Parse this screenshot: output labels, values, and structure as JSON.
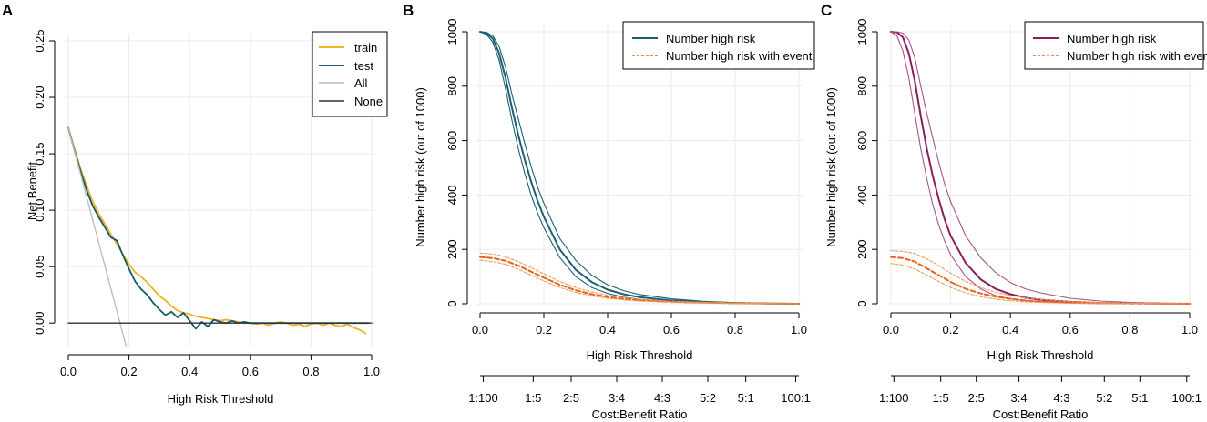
{
  "colors": {
    "train": "#f0b323",
    "test": "#145a6e",
    "all": "#bdbdbd",
    "none": "#333333",
    "teal": "#1d5f72",
    "teal_light": "#3a7f92",
    "purple": "#8c1d5e",
    "purple_light": "#a4558a",
    "orange_event": "#e8631a",
    "orange_light": "#f19a5b",
    "grid": "#ebebeb"
  },
  "chart_data": [
    {
      "id": "A",
      "panel_label": "A",
      "type": "line",
      "title": "",
      "xlabel": "High Risk Threshold",
      "ylabel": "Net Benefit",
      "xlim": [
        0,
        1
      ],
      "ylim": [
        -0.02,
        0.25
      ],
      "x_ticks": [
        "0.0",
        "0.2",
        "0.4",
        "0.6",
        "0.8",
        "1.0"
      ],
      "y_ticks": [
        "0.00",
        "0.05",
        "0.10",
        "0.15",
        "0.20",
        "0.25"
      ],
      "grid": true,
      "legend": {
        "position": "top-right",
        "entries": [
          "train",
          "test",
          "All",
          "None"
        ]
      },
      "series": [
        {
          "name": "train",
          "color_key": "train",
          "x": [
            0.0,
            0.02,
            0.04,
            0.06,
            0.08,
            0.1,
            0.12,
            0.14,
            0.16,
            0.18,
            0.2,
            0.22,
            0.24,
            0.26,
            0.28,
            0.3,
            0.32,
            0.34,
            0.36,
            0.38,
            0.4,
            0.42,
            0.44,
            0.46,
            0.48,
            0.5,
            0.52,
            0.54,
            0.56,
            0.58,
            0.6,
            0.62,
            0.64,
            0.66,
            0.68,
            0.7,
            0.72,
            0.74,
            0.76,
            0.78,
            0.8,
            0.82,
            0.84,
            0.86,
            0.88,
            0.9,
            0.92,
            0.94,
            0.96,
            0.98
          ],
          "y": [
            0.173,
            0.155,
            0.137,
            0.122,
            0.108,
            0.097,
            0.088,
            0.079,
            0.07,
            0.061,
            0.052,
            0.045,
            0.041,
            0.036,
            0.03,
            0.024,
            0.02,
            0.015,
            0.011,
            0.009,
            0.008,
            0.006,
            0.005,
            0.004,
            0.003,
            0.002,
            0.003,
            0.002,
            0.001,
            0.0,
            0.0,
            -0.001,
            0.0,
            -0.002,
            0.0,
            0.001,
            0.0,
            -0.002,
            -0.001,
            -0.003,
            -0.001,
            0.0,
            -0.002,
            0.0,
            -0.002,
            -0.003,
            -0.001,
            -0.004,
            -0.006,
            -0.009
          ]
        },
        {
          "name": "test",
          "color_key": "test",
          "x": [
            0.0,
            0.02,
            0.04,
            0.06,
            0.08,
            0.1,
            0.12,
            0.14,
            0.16,
            0.18,
            0.2,
            0.22,
            0.24,
            0.26,
            0.28,
            0.3,
            0.32,
            0.34,
            0.36,
            0.38,
            0.4,
            0.42,
            0.44,
            0.46,
            0.48,
            0.5,
            0.52,
            0.54,
            0.56,
            0.58,
            0.6,
            0.64,
            0.68,
            0.72,
            0.76,
            0.8,
            0.84,
            0.88,
            0.92,
            0.96,
            0.99
          ],
          "y": [
            0.173,
            0.153,
            0.135,
            0.118,
            0.104,
            0.094,
            0.085,
            0.076,
            0.073,
            0.06,
            0.048,
            0.037,
            0.03,
            0.025,
            0.018,
            0.012,
            0.007,
            0.01,
            0.005,
            0.009,
            0.002,
            -0.005,
            0.001,
            -0.003,
            0.003,
            0.001,
            0.0,
            0.002,
            0.0,
            0.001,
            0.0,
            0.0,
            0.0,
            0.0,
            0.0,
            0.0,
            0.0,
            0.0,
            0.0,
            0.0,
            0.0
          ]
        },
        {
          "name": "All",
          "color_key": "all",
          "x": [
            0.0,
            0.19
          ],
          "y": [
            0.173,
            -0.02
          ]
        },
        {
          "name": "None",
          "color_key": "none",
          "x": [
            0.0,
            1.0
          ],
          "y": [
            0.0,
            0.0
          ]
        }
      ]
    },
    {
      "id": "B",
      "panel_label": "B",
      "type": "line",
      "title": "",
      "xlabel": "High Risk Threshold",
      "ylabel": "Number high risk (out of 1000)",
      "x2label": "Cost:Benefit Ratio",
      "xlim": [
        0,
        1
      ],
      "ylim": [
        0,
        1000
      ],
      "x_ticks": [
        "0.0",
        "0.2",
        "0.4",
        "0.6",
        "0.8",
        "1.0"
      ],
      "y_ticks": [
        "0",
        "200",
        "400",
        "600",
        "800",
        "1000"
      ],
      "x2_tick_positions": [
        0.0099,
        0.1667,
        0.2857,
        0.4286,
        0.5714,
        0.7143,
        0.8333,
        0.9901
      ],
      "x2_ticks": [
        "1:100",
        "1:5",
        "2:5",
        "3:4",
        "4:3",
        "5:2",
        "5:1",
        "100:1"
      ],
      "grid": true,
      "legend": {
        "position": "top-right",
        "entries": [
          "Number high risk",
          "Number high risk with event"
        ]
      },
      "series": [
        {
          "name": "Number high risk",
          "role": "main",
          "color_key": "teal",
          "x": [
            0.0,
            0.02,
            0.04,
            0.06,
            0.08,
            0.1,
            0.12,
            0.14,
            0.16,
            0.18,
            0.2,
            0.25,
            0.3,
            0.35,
            0.4,
            0.45,
            0.5,
            0.6,
            0.7,
            0.8,
            0.9,
            1.0
          ],
          "y": [
            1000,
            995,
            975,
            920,
            830,
            720,
            620,
            530,
            450,
            380,
            320,
            200,
            125,
            80,
            52,
            35,
            24,
            12,
            6,
            3,
            1,
            0
          ]
        },
        {
          "name": "Number high risk (upper CI)",
          "role": "ci",
          "color_key": "teal",
          "x": [
            0.0,
            0.02,
            0.04,
            0.06,
            0.08,
            0.1,
            0.12,
            0.14,
            0.16,
            0.18,
            0.2,
            0.25,
            0.3,
            0.35,
            0.4,
            0.45,
            0.5,
            0.6,
            0.7,
            0.8,
            0.9,
            1.0
          ],
          "y": [
            1000,
            998,
            985,
            945,
            870,
            770,
            680,
            590,
            505,
            430,
            370,
            240,
            160,
            105,
            70,
            48,
            34,
            18,
            9,
            4,
            2,
            0
          ]
        },
        {
          "name": "Number high risk (lower CI)",
          "role": "ci",
          "color_key": "teal",
          "x": [
            0.0,
            0.02,
            0.04,
            0.06,
            0.08,
            0.1,
            0.12,
            0.14,
            0.16,
            0.18,
            0.2,
            0.25,
            0.3,
            0.35,
            0.4,
            0.45,
            0.5,
            0.6,
            0.7,
            0.8,
            0.9,
            1.0
          ],
          "y": [
            1000,
            990,
            962,
            895,
            790,
            675,
            570,
            480,
            400,
            335,
            280,
            170,
            100,
            60,
            38,
            24,
            16,
            8,
            4,
            2,
            1,
            0
          ]
        },
        {
          "name": "Number high risk with event",
          "role": "event",
          "color_key": "orange_event",
          "x": [
            0.0,
            0.04,
            0.08,
            0.12,
            0.16,
            0.2,
            0.25,
            0.3,
            0.35,
            0.4,
            0.45,
            0.5,
            0.6,
            0.7,
            0.8,
            0.9,
            1.0
          ],
          "y": [
            172,
            168,
            158,
            140,
            118,
            96,
            70,
            50,
            35,
            25,
            18,
            13,
            7,
            4,
            2,
            1,
            0
          ]
        },
        {
          "name": "Number high risk with event (upper CI)",
          "role": "ci-event",
          "color_key": "orange_light",
          "x": [
            0.0,
            0.04,
            0.08,
            0.12,
            0.16,
            0.2,
            0.25,
            0.3,
            0.35,
            0.4,
            0.45,
            0.5,
            0.6,
            0.7,
            0.8,
            0.9,
            1.0
          ],
          "y": [
            186,
            183,
            173,
            155,
            133,
            110,
            82,
            60,
            43,
            31,
            23,
            16,
            9,
            5,
            3,
            1,
            0
          ]
        },
        {
          "name": "Number high risk with event (lower CI)",
          "role": "ci-event",
          "color_key": "orange_light",
          "x": [
            0.0,
            0.04,
            0.08,
            0.12,
            0.16,
            0.2,
            0.25,
            0.3,
            0.35,
            0.4,
            0.45,
            0.5,
            0.6,
            0.7,
            0.8,
            0.9,
            1.0
          ],
          "y": [
            160,
            155,
            145,
            127,
            105,
            84,
            60,
            42,
            29,
            20,
            14,
            10,
            5,
            3,
            1,
            0,
            0
          ]
        }
      ]
    },
    {
      "id": "C",
      "panel_label": "C",
      "type": "line",
      "title": "",
      "xlabel": "High Risk Threshold",
      "ylabel": "Number high risk (out of 1000)",
      "x2label": "Cost:Benefit Ratio",
      "xlim": [
        0,
        1
      ],
      "ylim": [
        0,
        1000
      ],
      "x_ticks": [
        "0.0",
        "0.2",
        "0.4",
        "0.6",
        "0.8",
        "1.0"
      ],
      "y_ticks": [
        "0",
        "200",
        "400",
        "600",
        "800",
        "1000"
      ],
      "x2_tick_positions": [
        0.0099,
        0.1667,
        0.2857,
        0.4286,
        0.5714,
        0.7143,
        0.8333,
        0.9901
      ],
      "x2_ticks": [
        "1:100",
        "1:5",
        "2:5",
        "3:4",
        "4:3",
        "5:2",
        "5:1",
        "100:1"
      ],
      "grid": true,
      "legend": {
        "position": "top-right",
        "entries": [
          "Number high risk",
          "Number high risk with event"
        ]
      },
      "series": [
        {
          "name": "Number high risk",
          "role": "main",
          "color_key": "purple",
          "x": [
            0.0,
            0.02,
            0.04,
            0.06,
            0.08,
            0.1,
            0.12,
            0.14,
            0.16,
            0.18,
            0.2,
            0.25,
            0.3,
            0.35,
            0.4,
            0.45,
            0.5,
            0.6,
            0.7,
            0.8,
            0.9,
            1.0
          ],
          "y": [
            1000,
            998,
            980,
            920,
            820,
            690,
            570,
            470,
            385,
            310,
            250,
            150,
            90,
            55,
            35,
            22,
            15,
            7,
            3,
            2,
            1,
            0
          ]
        },
        {
          "name": "Number high risk (upper CI)",
          "role": "ci",
          "color_key": "purple_light",
          "x": [
            0.0,
            0.02,
            0.04,
            0.06,
            0.08,
            0.1,
            0.12,
            0.14,
            0.16,
            0.18,
            0.2,
            0.25,
            0.3,
            0.35,
            0.4,
            0.45,
            0.5,
            0.6,
            0.7,
            0.8,
            0.9,
            1.0
          ],
          "y": [
            1000,
            1000,
            995,
            970,
            905,
            800,
            700,
            610,
            520,
            440,
            375,
            250,
            170,
            115,
            78,
            55,
            40,
            20,
            10,
            5,
            2,
            0
          ]
        },
        {
          "name": "Number high risk (lower CI)",
          "role": "ci",
          "color_key": "purple_light",
          "x": [
            0.0,
            0.02,
            0.04,
            0.06,
            0.08,
            0.1,
            0.12,
            0.14,
            0.16,
            0.18,
            0.2,
            0.25,
            0.3,
            0.35,
            0.4,
            0.45,
            0.5,
            0.6,
            0.7,
            0.8,
            0.9,
            1.0
          ],
          "y": [
            1000,
            985,
            930,
            830,
            700,
            570,
            460,
            365,
            290,
            230,
            180,
            100,
            55,
            30,
            18,
            11,
            7,
            3,
            1,
            1,
            0,
            0
          ]
        },
        {
          "name": "Number high risk with event",
          "role": "event",
          "color_key": "orange_event",
          "x": [
            0.0,
            0.04,
            0.08,
            0.12,
            0.16,
            0.2,
            0.25,
            0.3,
            0.35,
            0.4,
            0.45,
            0.5,
            0.6,
            0.7,
            0.8,
            0.9,
            1.0
          ],
          "y": [
            172,
            168,
            155,
            130,
            105,
            80,
            55,
            38,
            26,
            18,
            12,
            8,
            4,
            2,
            1,
            0,
            0
          ]
        },
        {
          "name": "Number high risk with event (upper CI)",
          "role": "ci-event",
          "color_key": "orange_light",
          "x": [
            0.0,
            0.04,
            0.08,
            0.12,
            0.16,
            0.2,
            0.25,
            0.3,
            0.35,
            0.4,
            0.45,
            0.5,
            0.6,
            0.7,
            0.8,
            0.9,
            1.0
          ],
          "y": [
            195,
            193,
            185,
            165,
            140,
            112,
            82,
            60,
            42,
            30,
            22,
            16,
            8,
            4,
            2,
            1,
            0
          ]
        },
        {
          "name": "Number high risk with event (lower CI)",
          "role": "ci-event",
          "color_key": "orange_light",
          "x": [
            0.0,
            0.04,
            0.08,
            0.12,
            0.16,
            0.2,
            0.25,
            0.3,
            0.35,
            0.4,
            0.45,
            0.5,
            0.6,
            0.7,
            0.8,
            0.9,
            1.0
          ],
          "y": [
            148,
            142,
            128,
            105,
            82,
            60,
            40,
            26,
            17,
            11,
            7,
            5,
            2,
            1,
            0,
            0,
            0
          ]
        }
      ]
    }
  ]
}
